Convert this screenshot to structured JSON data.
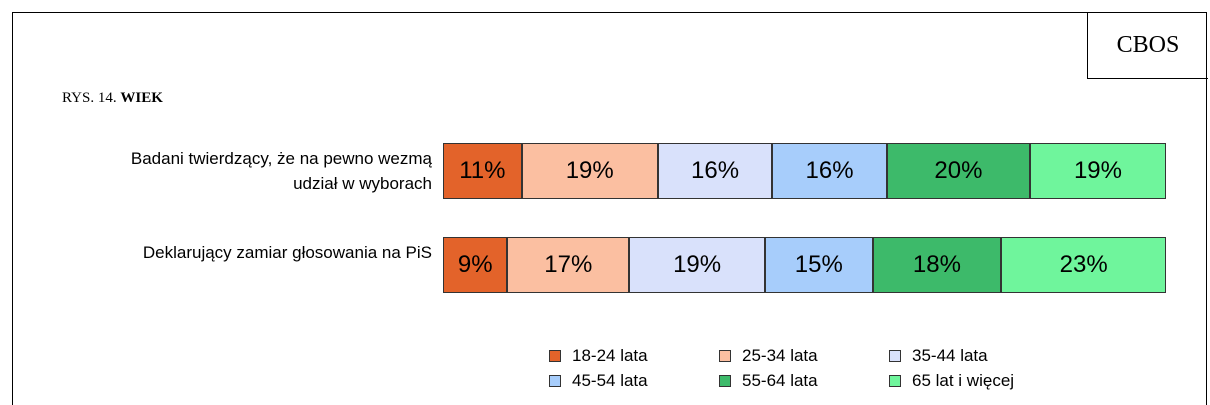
{
  "chart_data": {
    "type": "stacked-bar-100",
    "source": "CBOS",
    "figure_label": "RYS. 14.",
    "title": "WIEK",
    "categories": [
      "Badani twierdzący, że na pewno wezmą udział w wyborach",
      "Deklarujący zamiar głosowania na PiS"
    ],
    "series": [
      {
        "name": "18-24 lata",
        "color": "#e3632a",
        "values": [
          11,
          9
        ],
        "value_labels": [
          "11%",
          "9%"
        ]
      },
      {
        "name": "25-34 lata",
        "color": "#fbbfa1",
        "values": [
          19,
          17
        ],
        "value_labels": [
          "19%",
          "17%"
        ]
      },
      {
        "name": "35-44 lata",
        "color": "#d9e1fb",
        "values": [
          16,
          19
        ],
        "value_labels": [
          "16%",
          "19%"
        ]
      },
      {
        "name": "45-54 lata",
        "color": "#a7cdfb",
        "values": [
          16,
          15
        ],
        "value_labels": [
          "16%",
          "15%"
        ]
      },
      {
        "name": "55-64 lata",
        "color": "#3dba6a",
        "values": [
          20,
          18
        ],
        "value_labels": [
          "20%",
          "18%"
        ]
      },
      {
        "name": "65 lat i więcej",
        "color": "#6ff59c",
        "values": [
          19,
          23
        ],
        "value_labels": [
          "19%",
          "23%"
        ]
      }
    ]
  }
}
